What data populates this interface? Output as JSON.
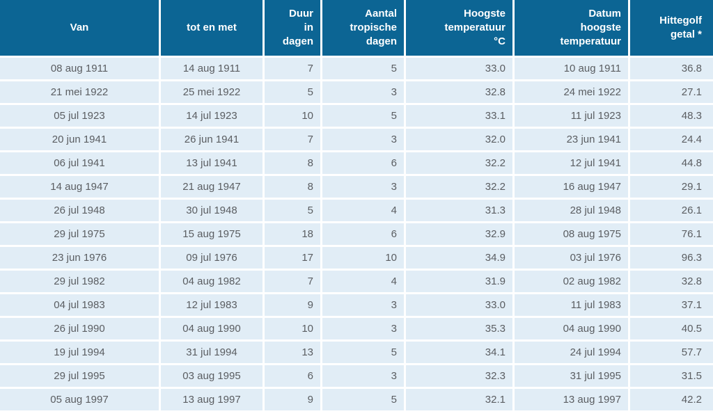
{
  "colors": {
    "header_bg": "#0c6594",
    "header_text": "#ffffff",
    "row_bg": "#e1edf6",
    "body_text": "#5a5d61",
    "separator": "#ffffff"
  },
  "chart_data": {
    "type": "table",
    "columns": [
      {
        "key": "van",
        "label": "Van",
        "align": "center"
      },
      {
        "key": "tot-en-met",
        "label": "tot en met",
        "align": "center"
      },
      {
        "key": "duur-in-dagen",
        "label": "Duur\nin\ndagen",
        "align": "right"
      },
      {
        "key": "aantal-tropische-dagen",
        "label": "Aantal\ntropische\ndagen",
        "align": "right"
      },
      {
        "key": "hoogste-temperatuur",
        "label": "Hoogste\ntemperatuur\n°C",
        "align": "right"
      },
      {
        "key": "datum-hoogste-temperatuur",
        "label": "Datum\nhoogste\ntemperatuur",
        "align": "right"
      },
      {
        "key": "hittegolf-getal",
        "label": "Hittegolf\ngetal *",
        "align": "right"
      }
    ],
    "rows": [
      [
        "08 aug 1911",
        "14 aug 1911",
        "7",
        "5",
        "33.0",
        "10 aug 1911",
        "36.8"
      ],
      [
        "21 mei 1922",
        "25 mei 1922",
        "5",
        "3",
        "32.8",
        "24 mei 1922",
        "27.1"
      ],
      [
        "05 jul 1923",
        "14 jul 1923",
        "10",
        "5",
        "33.1",
        "11 jul 1923",
        "48.3"
      ],
      [
        "20 jun 1941",
        "26 jun 1941",
        "7",
        "3",
        "32.0",
        "23 jun 1941",
        "24.4"
      ],
      [
        "06 jul 1941",
        "13 jul 1941",
        "8",
        "6",
        "32.2",
        "12 jul 1941",
        "44.8"
      ],
      [
        "14 aug 1947",
        "21 aug 1947",
        "8",
        "3",
        "32.2",
        "16 aug 1947",
        "29.1"
      ],
      [
        "26 jul 1948",
        "30 jul 1948",
        "5",
        "4",
        "31.3",
        "28 jul 1948",
        "26.1"
      ],
      [
        "29 jul 1975",
        "15 aug 1975",
        "18",
        "6",
        "32.9",
        "08 aug 1975",
        "76.1"
      ],
      [
        "23 jun 1976",
        "09 jul 1976",
        "17",
        "10",
        "34.9",
        "03 jul 1976",
        "96.3"
      ],
      [
        "29 jul 1982",
        "04 aug 1982",
        "7",
        "4",
        "31.9",
        "02 aug 1982",
        "32.8"
      ],
      [
        "04 jul 1983",
        "12 jul 1983",
        "9",
        "3",
        "33.0",
        "11 jul 1983",
        "37.1"
      ],
      [
        "26 jul 1990",
        "04 aug 1990",
        "10",
        "3",
        "35.3",
        "04 aug 1990",
        "40.5"
      ],
      [
        "19 jul 1994",
        "31 jul 1994",
        "13",
        "5",
        "34.1",
        "24 jul 1994",
        "57.7"
      ],
      [
        "29 jul 1995",
        "03 aug 1995",
        "6",
        "3",
        "32.3",
        "31 jul 1995",
        "31.5"
      ],
      [
        "05 aug 1997",
        "13 aug 1997",
        "9",
        "5",
        "32.1",
        "13 aug 1997",
        "42.2"
      ]
    ]
  }
}
